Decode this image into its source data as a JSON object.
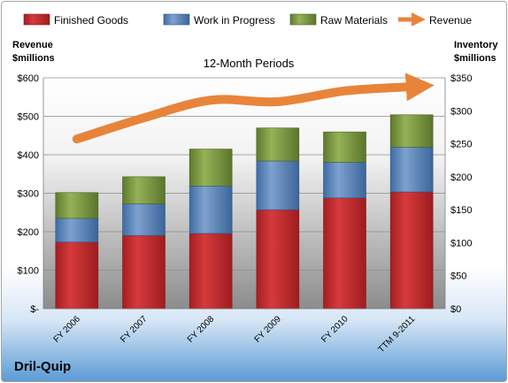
{
  "company": "Dril-Quip",
  "chart_data": {
    "type": "bar",
    "title": "12-Month Periods",
    "categories": [
      "FY 2006",
      "FY 2007",
      "FY 2008",
      "FY 2009",
      "FY 2010",
      "TTM 9-2011"
    ],
    "left_axis": {
      "label_line1": "Revenue",
      "label_line2": "$millions",
      "range": [
        0,
        600
      ],
      "ticks": [
        0,
        100,
        200,
        300,
        400,
        500,
        600
      ],
      "tick_labels": [
        "$-",
        "$100",
        "$200",
        "$300",
        "$400",
        "$500",
        "$600"
      ]
    },
    "right_axis": {
      "label_line1": "Inventory",
      "label_line2": "$millions",
      "range": [
        0,
        350
      ],
      "ticks": [
        0,
        50,
        100,
        150,
        200,
        250,
        300,
        350
      ],
      "tick_labels": [
        "$0",
        "$50",
        "$100",
        "$150",
        "$200",
        "$250",
        "$300",
        "$350"
      ]
    },
    "series": [
      {
        "name": "Finished Goods",
        "type": "bar",
        "axis": "right",
        "color": "#c0282b",
        "values": [
          101,
          111,
          114,
          150,
          168,
          177
        ]
      },
      {
        "name": "Work in Progress",
        "type": "bar",
        "axis": "right",
        "color": "#4f81bd",
        "values": [
          36,
          48,
          72,
          74,
          54,
          68
        ]
      },
      {
        "name": "Raw Materials",
        "type": "bar",
        "axis": "right",
        "color": "#77933c",
        "values": [
          39,
          41,
          56,
          50,
          46,
          49
        ]
      },
      {
        "name": "Revenue",
        "type": "line",
        "axis": "left",
        "color": "#e8843a",
        "values": [
          441,
          496,
          542,
          538,
          566,
          577
        ]
      }
    ],
    "stacked": true,
    "grid": true,
    "legend_position": "top"
  }
}
